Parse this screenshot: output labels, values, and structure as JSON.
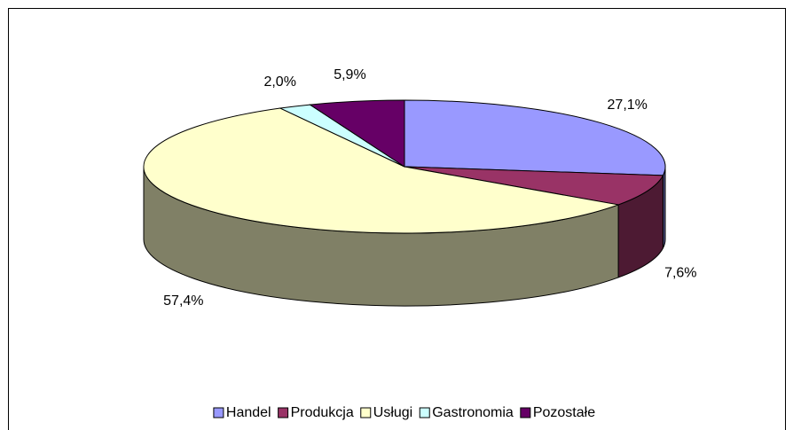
{
  "chart_data": {
    "type": "pie3d",
    "categories": [
      "Handel",
      "Produkcja",
      "Usługi",
      "Gastronomia",
      "Pozostałe"
    ],
    "values": [
      27.1,
      7.6,
      57.4,
      2.0,
      5.9
    ],
    "value_labels": [
      "27,1%",
      "7,6%",
      "57,4%",
      "2,0%",
      "5,9%"
    ],
    "colors": [
      "#9999ff",
      "#993366",
      "#ffffcc",
      "#ccffff",
      "#660066"
    ],
    "legend": "bottom"
  }
}
